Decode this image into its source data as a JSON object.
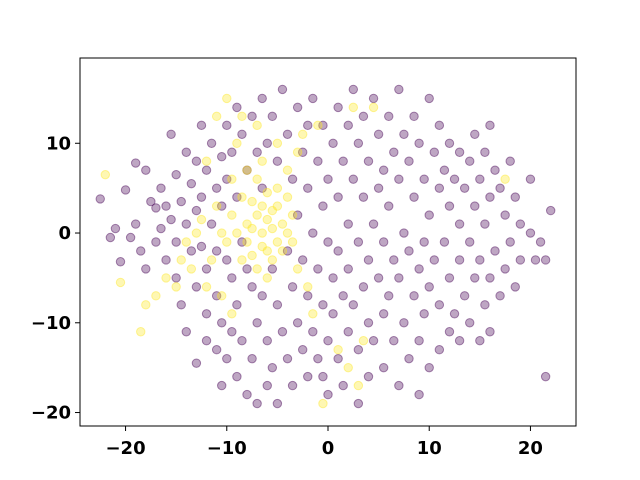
{
  "chart_data": {
    "type": "scatter",
    "title": "",
    "xlabel": "",
    "ylabel": "",
    "xlim": [
      -24.5,
      24.5
    ],
    "ylim": [
      -21.5,
      19.5
    ],
    "x_ticks": [
      -20,
      -10,
      0,
      10,
      20
    ],
    "y_ticks": [
      -20,
      -10,
      0,
      10
    ],
    "x_tick_labels": [
      "−20",
      "−10",
      "0",
      "10",
      "20"
    ],
    "y_tick_labels": [
      "−20",
      "−10",
      "0",
      "10"
    ],
    "grid": false,
    "legend": "none",
    "marker_alpha": 0.35,
    "colors": {
      "class_0": "#440154",
      "class_1": "#fde725"
    },
    "series": [
      {
        "color_key": "class_0",
        "points": [
          [
            -22.5,
            3.8
          ],
          [
            -21.5,
            -0.5
          ],
          [
            -21,
            0.5
          ],
          [
            -20.5,
            -3.2
          ],
          [
            -20,
            4.8
          ],
          [
            -19.5,
            -0.5
          ],
          [
            -19,
            7.8
          ],
          [
            -19,
            1
          ],
          [
            -18.5,
            -2
          ],
          [
            -18,
            7
          ],
          [
            -18,
            -4
          ],
          [
            -17.5,
            3.5
          ],
          [
            -17,
            2.8
          ],
          [
            -17,
            -1
          ],
          [
            -16.5,
            5
          ],
          [
            -16.5,
            0.5
          ],
          [
            -16,
            3
          ],
          [
            -16,
            -3
          ],
          [
            -15.5,
            11
          ],
          [
            -15.5,
            1.5
          ],
          [
            -15,
            6.5
          ],
          [
            -15,
            -1
          ],
          [
            -15,
            -5
          ],
          [
            -14.5,
            3.5
          ],
          [
            -14.5,
            -8
          ],
          [
            -14,
            9
          ],
          [
            -14,
            1
          ],
          [
            -14,
            -11
          ],
          [
            -13.5,
            5.5
          ],
          [
            -13.5,
            -2
          ],
          [
            -13,
            8
          ],
          [
            -13,
            2.5
          ],
          [
            -13,
            -6
          ],
          [
            -13,
            -14.5
          ],
          [
            -12.5,
            12
          ],
          [
            -12.5,
            4
          ],
          [
            -12.5,
            -1.5
          ],
          [
            -12,
            7
          ],
          [
            -12,
            -4
          ],
          [
            -12,
            -9
          ],
          [
            -12,
            -12
          ],
          [
            -11.5,
            10
          ],
          [
            -11.5,
            1
          ],
          [
            -11,
            5
          ],
          [
            -11,
            -2
          ],
          [
            -11,
            -7
          ],
          [
            -11,
            -13
          ],
          [
            -10.5,
            8.5
          ],
          [
            -10.5,
            3
          ],
          [
            -10.5,
            -10
          ],
          [
            -10.5,
            -17
          ],
          [
            -10,
            12
          ],
          [
            -10,
            6
          ],
          [
            -10,
            -3
          ],
          [
            -10,
            -14
          ],
          [
            -9.5,
            9
          ],
          [
            -9.5,
            -5
          ],
          [
            -9.5,
            -11
          ],
          [
            -9,
            14
          ],
          [
            -9,
            4
          ],
          [
            -9,
            -8
          ],
          [
            -9,
            -16
          ],
          [
            -8.5,
            11
          ],
          [
            -8.5,
            -1
          ],
          [
            -8.5,
            -12
          ],
          [
            -8,
            7
          ],
          [
            -8,
            -4
          ],
          [
            -8,
            -18
          ],
          [
            -7.5,
            13
          ],
          [
            -7.5,
            -6
          ],
          [
            -7.5,
            -14
          ],
          [
            -7,
            9
          ],
          [
            -7,
            -10
          ],
          [
            -7,
            -19
          ],
          [
            -6.5,
            15
          ],
          [
            -6.5,
            5
          ],
          [
            -6.5,
            -7
          ],
          [
            -6,
            10
          ],
          [
            -6,
            -12
          ],
          [
            -6,
            -17
          ],
          [
            -5.5,
            13
          ],
          [
            -5.5,
            -4
          ],
          [
            -5.5,
            -15
          ],
          [
            -5,
            8
          ],
          [
            -5,
            -8
          ],
          [
            -5,
            -19
          ],
          [
            -4.5,
            16
          ],
          [
            -4.5,
            -11
          ],
          [
            -4,
            11
          ],
          [
            -4,
            -2
          ],
          [
            -4,
            -14
          ],
          [
            -3.5,
            6
          ],
          [
            -3.5,
            -6
          ],
          [
            -3.5,
            -17
          ],
          [
            -3,
            14
          ],
          [
            -3,
            2
          ],
          [
            -3,
            -10
          ],
          [
            -2.5,
            9
          ],
          [
            -2.5,
            -3
          ],
          [
            -2.5,
            -13
          ],
          [
            -2,
            12
          ],
          [
            -2,
            5
          ],
          [
            -2,
            -7
          ],
          [
            -2,
            -16
          ],
          [
            -1.5,
            15
          ],
          [
            -1.5,
            0
          ],
          [
            -1.5,
            -11
          ],
          [
            -1,
            8
          ],
          [
            -1,
            -4
          ],
          [
            -1,
            -14
          ],
          [
            -0.5,
            12
          ],
          [
            -0.5,
            3
          ],
          [
            -0.5,
            -8
          ],
          [
            -0.5,
            -16
          ],
          [
            0,
            6
          ],
          [
            0,
            -1
          ],
          [
            0,
            -12
          ],
          [
            0,
            -18
          ],
          [
            0.5,
            10
          ],
          [
            0.5,
            -5
          ],
          [
            0.5,
            -9
          ],
          [
            1,
            14
          ],
          [
            1,
            4
          ],
          [
            1,
            -2
          ],
          [
            1,
            -14
          ],
          [
            1.5,
            8
          ],
          [
            1.5,
            -7
          ],
          [
            1.5,
            -17
          ],
          [
            2,
            12
          ],
          [
            2,
            1
          ],
          [
            2,
            -4
          ],
          [
            2,
            -11
          ],
          [
            2.5,
            16
          ],
          [
            2.5,
            6
          ],
          [
            2.5,
            -8
          ],
          [
            3,
            10
          ],
          [
            3,
            -1
          ],
          [
            3,
            -13
          ],
          [
            3,
            -19
          ],
          [
            3.5,
            13
          ],
          [
            3.5,
            4
          ],
          [
            3.5,
            -6
          ],
          [
            4,
            8
          ],
          [
            4,
            -3
          ],
          [
            4,
            -10
          ],
          [
            4,
            -16
          ],
          [
            4.5,
            15
          ],
          [
            4.5,
            1
          ],
          [
            4.5,
            -12
          ],
          [
            5,
            11
          ],
          [
            5,
            5
          ],
          [
            5,
            -5
          ],
          [
            5.5,
            7
          ],
          [
            5.5,
            -1
          ],
          [
            5.5,
            -9
          ],
          [
            5.5,
            -15
          ],
          [
            6,
            13
          ],
          [
            6,
            3
          ],
          [
            6,
            -7
          ],
          [
            6.5,
            9
          ],
          [
            6.5,
            -3
          ],
          [
            6.5,
            -12
          ],
          [
            7,
            16
          ],
          [
            7,
            6
          ],
          [
            7,
            -5
          ],
          [
            7,
            -17
          ],
          [
            7.5,
            11
          ],
          [
            7.5,
            0
          ],
          [
            7.5,
            -10
          ],
          [
            8,
            8
          ],
          [
            8,
            -2
          ],
          [
            8,
            -14
          ],
          [
            8.5,
            13
          ],
          [
            8.5,
            4
          ],
          [
            8.5,
            -7
          ],
          [
            9,
            10
          ],
          [
            9,
            -4
          ],
          [
            9,
            -12
          ],
          [
            9,
            -18
          ],
          [
            9.5,
            6
          ],
          [
            9.5,
            -1
          ],
          [
            9.5,
            -9
          ],
          [
            10,
            15
          ],
          [
            10,
            2
          ],
          [
            10,
            -6
          ],
          [
            10,
            -15
          ],
          [
            10.5,
            9
          ],
          [
            10.5,
            -3
          ],
          [
            11,
            12
          ],
          [
            11,
            5
          ],
          [
            11,
            -8
          ],
          [
            11,
            -13
          ],
          [
            11.5,
            7
          ],
          [
            11.5,
            -1
          ],
          [
            12,
            10
          ],
          [
            12,
            3
          ],
          [
            12,
            -5
          ],
          [
            12,
            -11
          ],
          [
            12.5,
            6
          ],
          [
            12.5,
            -9
          ],
          [
            13,
            9
          ],
          [
            13,
            1
          ],
          [
            13,
            -3
          ],
          [
            13,
            -12
          ],
          [
            13.5,
            5
          ],
          [
            13.5,
            -7
          ],
          [
            14,
            8
          ],
          [
            14,
            -1
          ],
          [
            14,
            -10
          ],
          [
            14.5,
            11
          ],
          [
            14.5,
            3
          ],
          [
            14.5,
            -5
          ],
          [
            15,
            6
          ],
          [
            15,
            -3
          ],
          [
            15,
            -12
          ],
          [
            15.5,
            9
          ],
          [
            15.5,
            1
          ],
          [
            15.5,
            -8
          ],
          [
            16,
            12
          ],
          [
            16,
            4
          ],
          [
            16,
            -5
          ],
          [
            16,
            -11
          ],
          [
            16.5,
            7
          ],
          [
            16.5,
            -2
          ],
          [
            17,
            5
          ],
          [
            17,
            -7
          ],
          [
            17.5,
            2
          ],
          [
            17.5,
            -4
          ],
          [
            18,
            8
          ],
          [
            18,
            -1
          ],
          [
            18.5,
            4
          ],
          [
            18.5,
            -6
          ],
          [
            19,
            1
          ],
          [
            19,
            -3
          ],
          [
            20,
            6
          ],
          [
            20,
            0
          ],
          [
            20.5,
            -3
          ],
          [
            21,
            -1
          ],
          [
            21.5,
            -3
          ],
          [
            21.5,
            -16
          ],
          [
            22,
            2.5
          ]
        ]
      },
      {
        "color_key": "class_1",
        "points": [
          [
            -22,
            6.5
          ],
          [
            -20.5,
            -5.5
          ],
          [
            -18.5,
            -11
          ],
          [
            -18,
            -8
          ],
          [
            -17,
            -7
          ],
          [
            -16,
            -5
          ],
          [
            -15,
            -6
          ],
          [
            -14.5,
            -3
          ],
          [
            -14,
            -1
          ],
          [
            -13.5,
            -4
          ],
          [
            -13,
            0
          ],
          [
            -12.5,
            1.5
          ],
          [
            -12,
            -6
          ],
          [
            -12,
            8
          ],
          [
            -11.5,
            -3
          ],
          [
            -11,
            13
          ],
          [
            -11,
            3
          ],
          [
            -10.5,
            0
          ],
          [
            -10.5,
            -7
          ],
          [
            -10,
            15
          ],
          [
            -10,
            -1
          ],
          [
            -9.5,
            2
          ],
          [
            -9.5,
            6
          ],
          [
            -9.5,
            -9
          ],
          [
            -9,
            0
          ],
          [
            -9,
            10
          ],
          [
            -8.5,
            -3
          ],
          [
            -8.5,
            4
          ],
          [
            -8.5,
            13
          ],
          [
            -8,
            -1
          ],
          [
            -8,
            1
          ],
          [
            -8,
            7
          ],
          [
            -7.5,
            0.5
          ],
          [
            -7.5,
            3.5
          ],
          [
            -7.5,
            -2.5
          ],
          [
            -7,
            -4
          ],
          [
            -7,
            2
          ],
          [
            -7,
            6
          ],
          [
            -7,
            12
          ],
          [
            -6.5,
            0
          ],
          [
            -6.5,
            -1.5
          ],
          [
            -6.5,
            3
          ],
          [
            -6.5,
            8
          ],
          [
            -6,
            -2
          ],
          [
            -6,
            1.5
          ],
          [
            -6,
            4.5
          ],
          [
            -6,
            -5
          ],
          [
            -5.5,
            0.5
          ],
          [
            -5.5,
            2.5
          ],
          [
            -5.5,
            -3
          ],
          [
            -5,
            -1
          ],
          [
            -5,
            3
          ],
          [
            -5,
            5
          ],
          [
            -5,
            10
          ],
          [
            -4.5,
            1
          ],
          [
            -4.5,
            -2
          ],
          [
            -4,
            0
          ],
          [
            -4,
            4
          ],
          [
            -4,
            7
          ],
          [
            -3.5,
            -1
          ],
          [
            -3.5,
            2
          ],
          [
            -3,
            9
          ],
          [
            -3,
            -4
          ],
          [
            -2.5,
            11
          ],
          [
            -2,
            -6
          ],
          [
            -1.5,
            -9
          ],
          [
            -1,
            12
          ],
          [
            -0.5,
            -19
          ],
          [
            1,
            -13
          ],
          [
            2,
            -15
          ],
          [
            2.5,
            14
          ],
          [
            3,
            -17
          ],
          [
            3.5,
            -12
          ],
          [
            4.5,
            14
          ],
          [
            17.5,
            6
          ]
        ]
      }
    ]
  }
}
